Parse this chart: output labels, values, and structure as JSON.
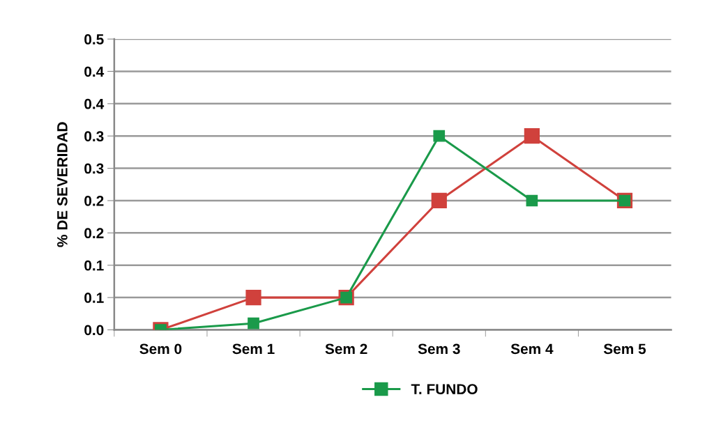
{
  "chart_data": {
    "type": "line",
    "ylabel": "% DE SEVERIDAD",
    "categories": [
      "Sem 0",
      "Sem 1",
      "Sem 2",
      "Sem 3",
      "Sem 4",
      "Sem 5"
    ],
    "series": [
      {
        "color": "#d0413c",
        "values": [
          0,
          0.05,
          0.05,
          0.2,
          0.3,
          0.2
        ]
      },
      {
        "name": "T. FUNDO",
        "color": "#1a9a4a",
        "values": [
          0,
          0.01,
          0.05,
          0.3,
          0.2,
          0.2
        ]
      }
    ],
    "ylim": [
      0,
      0.45
    ],
    "yticks": [
      {
        "value": 0,
        "label": "0.0"
      },
      {
        "value": 0.05,
        "label": "0.1"
      },
      {
        "value": 0.1,
        "label": "0.1"
      },
      {
        "value": 0.15,
        "label": "0.2"
      },
      {
        "value": 0.2,
        "label": "0.2"
      },
      {
        "value": 0.25,
        "label": "0.3"
      },
      {
        "value": 0.3,
        "label": "0.3"
      },
      {
        "value": 0.35,
        "label": "0.4"
      },
      {
        "value": 0.4,
        "label": "0.4"
      },
      {
        "value": 0.45,
        "label": "0.5"
      }
    ],
    "grid": "y",
    "legend": "bottom",
    "marker": "square",
    "line_style": "solid"
  }
}
